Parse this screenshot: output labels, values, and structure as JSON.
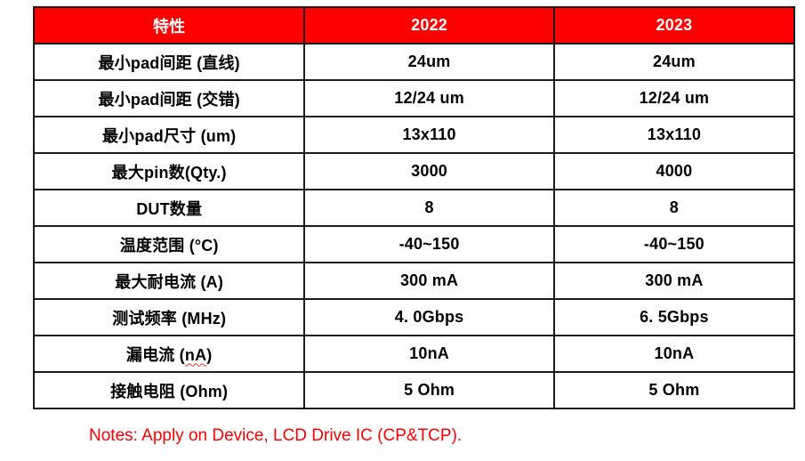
{
  "table": {
    "headers": {
      "feature": "特性",
      "y2022": "2022",
      "y2023": "2023"
    },
    "rows": [
      {
        "pre": "最小pad间距 (直线)",
        "wavy": "",
        "post": "",
        "v2022": "24um",
        "v2023": "24um"
      },
      {
        "pre": "最小pad间距 (交错)",
        "wavy": "",
        "post": "",
        "v2022": "12/24 um",
        "v2023": "12/24 um"
      },
      {
        "pre": "最小pad尺寸 (um)",
        "wavy": "",
        "post": "",
        "v2022": "13x110",
        "v2023": "13x110"
      },
      {
        "pre": "最大pin数(Qty.)",
        "wavy": "",
        "post": "",
        "v2022": "3000",
        "v2023": "4000"
      },
      {
        "pre": "DUT数量",
        "wavy": "",
        "post": "",
        "v2022": "8",
        "v2023": "8"
      },
      {
        "pre": "温度范围 (°C)",
        "wavy": "",
        "post": "",
        "v2022": "-40~150",
        "v2023": "-40~150"
      },
      {
        "pre": "最大耐电流 (A)",
        "wavy": "",
        "post": "",
        "v2022": "300 mA",
        "v2023": "300 mA"
      },
      {
        "pre": "测试频率 (MHz)",
        "wavy": "",
        "post": "",
        "v2022": "4. 0Gbps",
        "v2023": "6. 5Gbps"
      },
      {
        "pre": "漏电流 (",
        "wavy": "nA",
        "post": ")",
        "v2022": "10nA",
        "v2023": "10nA"
      },
      {
        "pre": "接触电阻 (Ohm)",
        "wavy": "",
        "post": "",
        "v2022": "5 Ohm",
        "v2023": "5 Ohm"
      }
    ]
  },
  "notes": "Notes: Apply on Device, LCD Drive IC (CP&TCP).",
  "colors": {
    "header_bg": "#ff0000",
    "header_text": "#ffffff",
    "body_text": "#000000",
    "border": "#1c1c1c",
    "notes_text": "#ff0000",
    "spellcheck_underline": "#ff2a2a"
  }
}
